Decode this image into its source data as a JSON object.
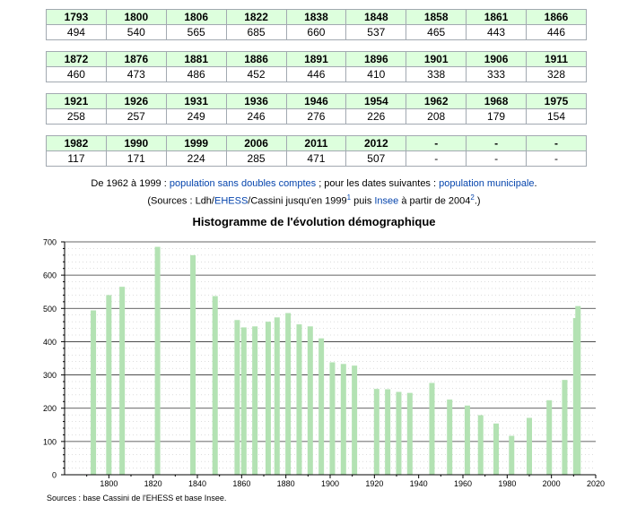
{
  "table_rows": [
    {
      "years": [
        "1793",
        "1800",
        "1806",
        "1822",
        "1838",
        "1848",
        "1858",
        "1861",
        "1866"
      ],
      "values": [
        "494",
        "540",
        "565",
        "685",
        "660",
        "537",
        "465",
        "443",
        "446"
      ]
    },
    {
      "years": [
        "1872",
        "1876",
        "1881",
        "1886",
        "1891",
        "1896",
        "1901",
        "1906",
        "1911"
      ],
      "values": [
        "460",
        "473",
        "486",
        "452",
        "446",
        "410",
        "338",
        "333",
        "328"
      ]
    },
    {
      "years": [
        "1921",
        "1926",
        "1931",
        "1936",
        "1946",
        "1954",
        "1962",
        "1968",
        "1975"
      ],
      "values": [
        "258",
        "257",
        "249",
        "246",
        "276",
        "226",
        "208",
        "179",
        "154"
      ]
    },
    {
      "years": [
        "1982",
        "1990",
        "1999",
        "2006",
        "2011",
        "2012",
        "-",
        "-",
        "-"
      ],
      "values": [
        "117",
        "171",
        "224",
        "285",
        "471",
        "507",
        "-",
        "-",
        "-"
      ]
    }
  ],
  "notes": {
    "line1_a": "De 1962 à 1999 : ",
    "line1_link1": "population sans doubles comptes",
    "line1_b": " ; pour les dates suivantes : ",
    "line1_link2": "population municipale",
    "line1_c": ".",
    "line2_a": "(Sources : Ldh/",
    "line2_link1": "EHESS",
    "line2_b": "/Cassini jusqu'en 1999",
    "line2_sup1": "1",
    "line2_c": " puis ",
    "line2_link2": "Insee",
    "line2_d": " à partir de 2004",
    "line2_sup2": "2",
    "line2_e": ".)"
  },
  "chart_data": {
    "type": "bar",
    "title": "Histogramme de l'évolution démographique",
    "x": [
      1793,
      1800,
      1806,
      1822,
      1838,
      1848,
      1858,
      1861,
      1866,
      1872,
      1876,
      1881,
      1886,
      1891,
      1896,
      1901,
      1906,
      1911,
      1921,
      1926,
      1931,
      1936,
      1946,
      1954,
      1962,
      1968,
      1975,
      1982,
      1990,
      1999,
      2006,
      2011,
      2012
    ],
    "values": [
      494,
      540,
      565,
      685,
      660,
      537,
      465,
      443,
      446,
      460,
      473,
      486,
      452,
      446,
      410,
      338,
      333,
      328,
      258,
      257,
      249,
      246,
      276,
      226,
      208,
      179,
      154,
      117,
      171,
      224,
      285,
      471,
      507
    ],
    "xlim": [
      1780,
      2020
    ],
    "ylim": [
      0,
      700
    ],
    "x_ticks": [
      1800,
      1820,
      1840,
      1860,
      1880,
      1900,
      1920,
      1940,
      1960,
      1980,
      2000,
      2020
    ],
    "y_ticks": [
      0,
      100,
      200,
      300,
      400,
      500,
      600,
      700
    ],
    "grid": true,
    "colors": {
      "bar": "#b3e2b3",
      "grid": "#333333",
      "minor_grid": "#bbbbbb"
    }
  },
  "sources": "Sources : base Cassini de l'EHESS et base Insee."
}
